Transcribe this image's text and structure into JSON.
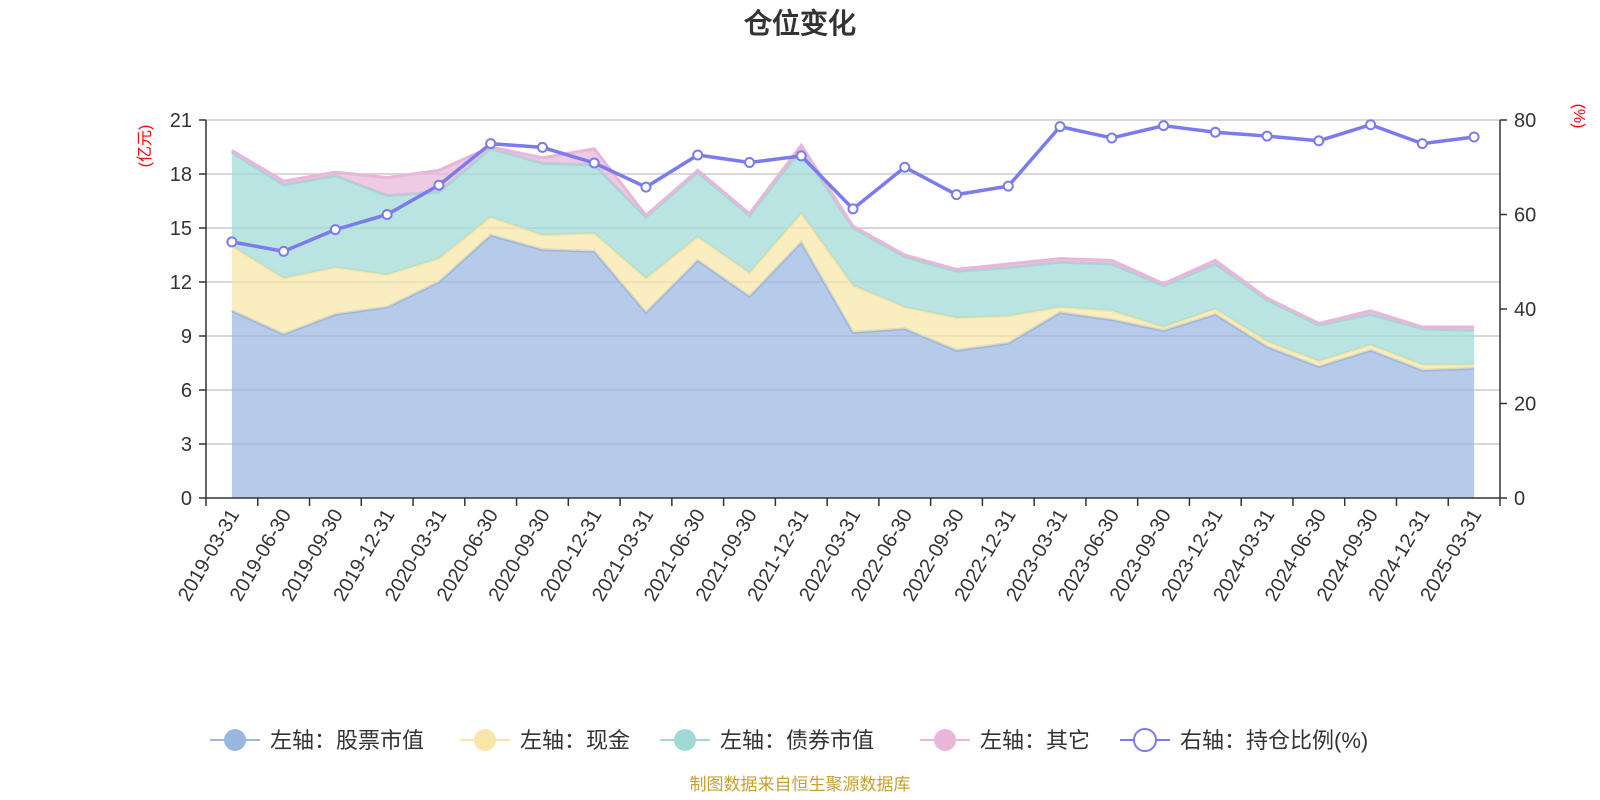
{
  "chart_data": {
    "type": "area",
    "title": "仓位变化",
    "left_axis_unit": "(亿元)",
    "right_axis_unit": "(%)",
    "ylim_left": [
      0,
      21
    ],
    "yticks_left": [
      0,
      3,
      6,
      9,
      12,
      15,
      18,
      21
    ],
    "ylim_right": [
      0,
      80
    ],
    "yticks_right": [
      0,
      20,
      40,
      60,
      80
    ],
    "categories": [
      "2019-03-31",
      "2019-06-30",
      "2019-09-30",
      "2019-12-31",
      "2020-03-31",
      "2020-06-30",
      "2020-09-30",
      "2020-12-31",
      "2021-03-31",
      "2021-06-30",
      "2021-09-30",
      "2021-12-31",
      "2022-03-31",
      "2022-06-30",
      "2022-09-30",
      "2022-12-31",
      "2023-03-31",
      "2023-06-30",
      "2023-09-30",
      "2023-12-31",
      "2024-03-31",
      "2024-06-30",
      "2024-09-30",
      "2024-12-31",
      "2025-03-31"
    ],
    "stacked": true,
    "series": [
      {
        "name": "左轴：股票市值",
        "axis": "left",
        "color": "#9ab7e1",
        "values": [
          10.4,
          9.1,
          10.2,
          10.6,
          12.0,
          14.6,
          13.8,
          13.7,
          10.3,
          13.2,
          11.2,
          14.2,
          9.2,
          9.4,
          8.2,
          8.6,
          10.3,
          9.9,
          9.3,
          10.2,
          8.4,
          7.3,
          8.2,
          7.1,
          7.2
        ]
      },
      {
        "name": "左轴：现金",
        "axis": "left",
        "color": "#f8e6a8",
        "values": [
          3.6,
          3.1,
          2.6,
          1.8,
          1.3,
          1.0,
          0.8,
          1.0,
          1.9,
          1.3,
          1.3,
          1.6,
          2.6,
          1.2,
          1.8,
          1.5,
          0.3,
          0.5,
          0.2,
          0.3,
          0.3,
          0.3,
          0.3,
          0.3,
          0.2
        ]
      },
      {
        "name": "左轴：债券市值",
        "axis": "left",
        "color": "#9fd9d6",
        "values": [
          5.2,
          5.2,
          5.1,
          4.4,
          3.7,
          3.8,
          4.0,
          3.8,
          3.4,
          3.6,
          3.2,
          3.6,
          3.2,
          2.8,
          2.6,
          2.7,
          2.5,
          2.6,
          2.3,
          2.5,
          2.3,
          2.0,
          1.7,
          2.0,
          1.9
        ]
      },
      {
        "name": "左轴：其它",
        "axis": "left",
        "color": "#e8b6d8",
        "values": [
          0.1,
          0.2,
          0.2,
          1.0,
          1.2,
          0.1,
          0.3,
          0.9,
          0.1,
          0.1,
          0.1,
          0.2,
          0.1,
          0.1,
          0.1,
          0.2,
          0.2,
          0.2,
          0.1,
          0.2,
          0.1,
          0.1,
          0.2,
          0.1,
          0.2
        ]
      },
      {
        "name": "右轴：持仓比例(%)",
        "axis": "right",
        "type": "line",
        "color": "#7b7bef",
        "values": [
          54.2,
          52.2,
          56.8,
          60.0,
          66.2,
          75.0,
          74.2,
          70.9,
          65.8,
          72.6,
          71.0,
          72.4,
          61.2,
          70.0,
          64.2,
          66.0,
          78.6,
          76.2,
          78.8,
          77.4,
          76.6,
          75.6,
          79.0,
          75.0,
          76.4
        ]
      }
    ],
    "legend_position": "bottom",
    "grid": true
  },
  "source_note": "制图数据来自恒生聚源数据库"
}
